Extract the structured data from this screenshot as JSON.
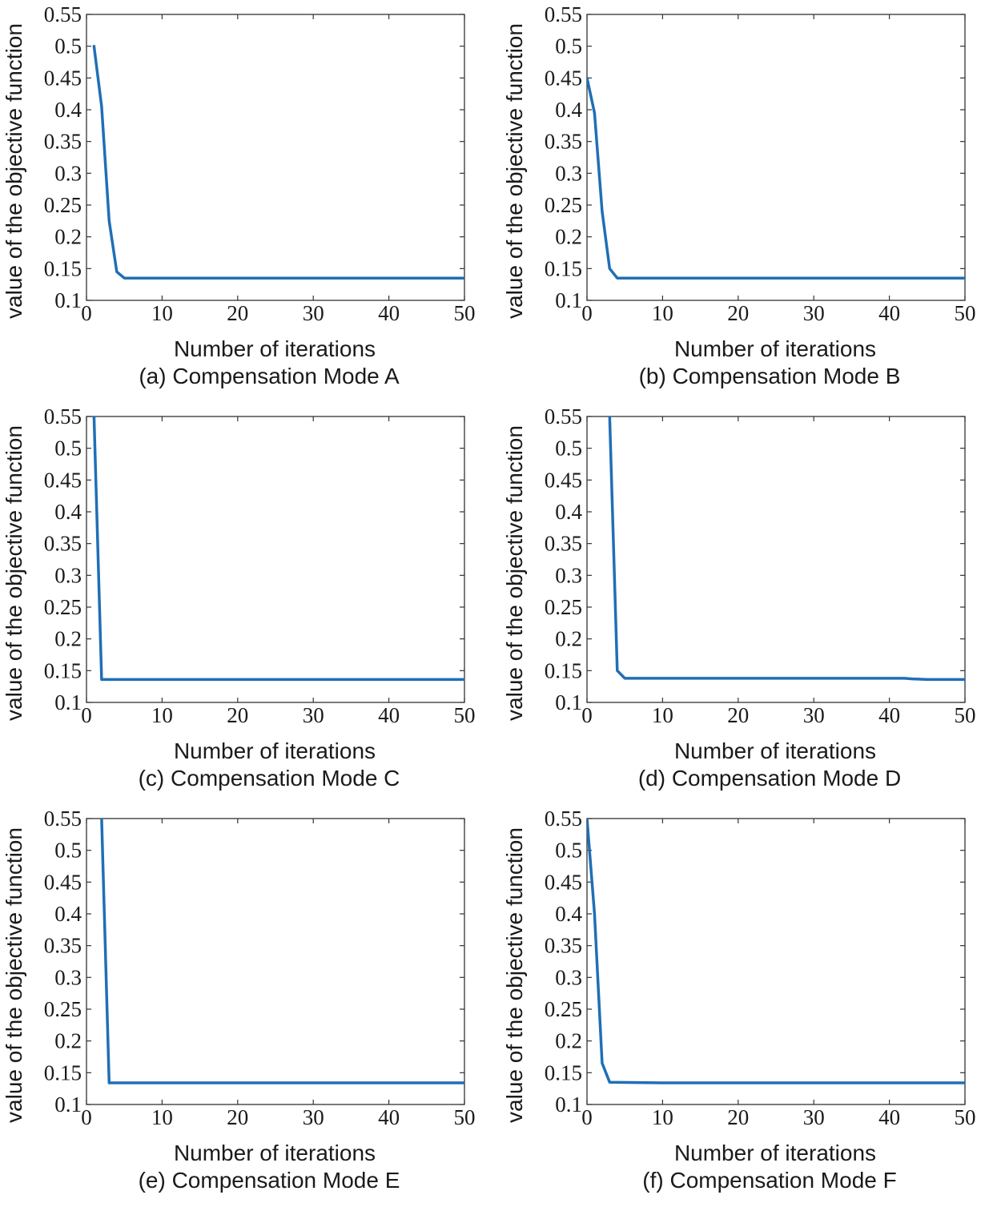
{
  "figure": {
    "line_color": "#1f6fb6",
    "axis_color": "#333333"
  },
  "chart_data": [
    {
      "type": "line",
      "caption": "(a) Compensation Mode A",
      "xlabel": "Number of iterations",
      "ylabel": "value of the objective function",
      "xlim": [
        0,
        50
      ],
      "ylim": [
        0.1,
        0.55
      ],
      "xticks": [
        0,
        10,
        20,
        30,
        40,
        50
      ],
      "yticks": [
        0.1,
        0.15,
        0.2,
        0.25,
        0.3,
        0.35,
        0.4,
        0.45,
        0.5,
        0.55
      ],
      "grid": false,
      "series": [
        {
          "x": [
            1,
            2,
            3,
            4,
            5,
            10,
            20,
            30,
            40,
            50
          ],
          "y": [
            0.5,
            0.405,
            0.225,
            0.145,
            0.135,
            0.135,
            0.135,
            0.135,
            0.135,
            0.135
          ]
        }
      ]
    },
    {
      "type": "line",
      "caption": "(b) Compensation Mode B",
      "xlabel": "Number of iterations",
      "ylabel": "value of the objective function",
      "xlim": [
        0,
        50
      ],
      "ylim": [
        0.1,
        0.55
      ],
      "xticks": [
        0,
        10,
        20,
        30,
        40,
        50
      ],
      "yticks": [
        0.1,
        0.15,
        0.2,
        0.25,
        0.3,
        0.35,
        0.4,
        0.45,
        0.5,
        0.55
      ],
      "grid": false,
      "series": [
        {
          "x": [
            0,
            1,
            2,
            3,
            4,
            10,
            20,
            30,
            40,
            50
          ],
          "y": [
            0.45,
            0.395,
            0.24,
            0.15,
            0.135,
            0.135,
            0.135,
            0.135,
            0.135,
            0.135
          ]
        }
      ]
    },
    {
      "type": "line",
      "caption": "(c) Compensation Mode C",
      "xlabel": "Number of iterations",
      "ylabel": "value of the objective function",
      "xlim": [
        0,
        50
      ],
      "ylim": [
        0.1,
        0.55
      ],
      "xticks": [
        0,
        10,
        20,
        30,
        40,
        50
      ],
      "yticks": [
        0.1,
        0.15,
        0.2,
        0.25,
        0.3,
        0.35,
        0.4,
        0.45,
        0.5,
        0.55
      ],
      "grid": false,
      "series": [
        {
          "x": [
            1,
            2,
            10,
            20,
            30,
            40,
            50
          ],
          "y": [
            0.55,
            0.136,
            0.136,
            0.136,
            0.136,
            0.136,
            0.136
          ]
        }
      ]
    },
    {
      "type": "line",
      "caption": "(d) Compensation Mode D",
      "xlabel": "Number of iterations",
      "ylabel": "value of the objective function",
      "xlim": [
        0,
        50
      ],
      "ylim": [
        0.1,
        0.55
      ],
      "xticks": [
        0,
        10,
        20,
        30,
        40,
        50
      ],
      "yticks": [
        0.1,
        0.15,
        0.2,
        0.25,
        0.3,
        0.35,
        0.4,
        0.45,
        0.5,
        0.55
      ],
      "grid": false,
      "series": [
        {
          "x": [
            3,
            4,
            5,
            10,
            20,
            30,
            40,
            42,
            43,
            45,
            50
          ],
          "y": [
            0.55,
            0.15,
            0.138,
            0.138,
            0.138,
            0.138,
            0.138,
            0.138,
            0.137,
            0.136,
            0.136
          ]
        }
      ]
    },
    {
      "type": "line",
      "caption": "(e) Compensation Mode E",
      "xlabel": "Number of iterations",
      "ylabel": "value of the objective function",
      "xlim": [
        0,
        50
      ],
      "ylim": [
        0.1,
        0.55
      ],
      "xticks": [
        0,
        10,
        20,
        30,
        40,
        50
      ],
      "yticks": [
        0.1,
        0.15,
        0.2,
        0.25,
        0.3,
        0.35,
        0.4,
        0.45,
        0.5,
        0.55
      ],
      "grid": false,
      "series": [
        {
          "x": [
            2,
            3,
            10,
            20,
            30,
            40,
            50
          ],
          "y": [
            0.55,
            0.134,
            0.134,
            0.134,
            0.134,
            0.134,
            0.134
          ]
        }
      ]
    },
    {
      "type": "line",
      "caption": "(f) Compensation Mode F",
      "xlabel": "Number of iterations",
      "ylabel": "value of the objective function",
      "xlim": [
        0,
        50
      ],
      "ylim": [
        0.1,
        0.55
      ],
      "xticks": [
        0,
        10,
        20,
        30,
        40,
        50
      ],
      "yticks": [
        0.1,
        0.15,
        0.2,
        0.25,
        0.3,
        0.35,
        0.4,
        0.45,
        0.5,
        0.55
      ],
      "grid": false,
      "series": [
        {
          "x": [
            0,
            1,
            2,
            3,
            10,
            20,
            30,
            40,
            50
          ],
          "y": [
            0.55,
            0.4,
            0.165,
            0.135,
            0.134,
            0.134,
            0.134,
            0.134,
            0.134
          ]
        }
      ]
    }
  ]
}
